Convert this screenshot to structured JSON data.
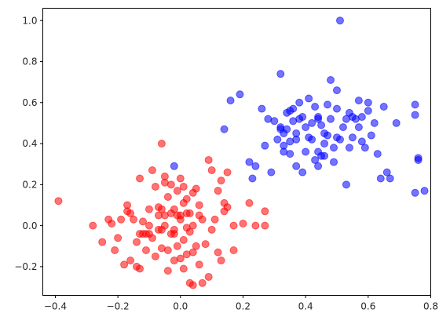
{
  "chart_data": {
    "type": "scatter",
    "title": "",
    "xlabel": "",
    "ylabel": "",
    "xlim": [
      -0.44,
      0.8
    ],
    "ylim": [
      -0.34,
      1.06
    ],
    "grid": false,
    "x_ticks": [
      -0.4,
      -0.2,
      0.0,
      0.2,
      0.4,
      0.6,
      0.8
    ],
    "x_tick_labels": [
      "−0.4",
      "−0.2",
      "0.0",
      "0.2",
      "0.4",
      "0.6",
      "0.8"
    ],
    "y_ticks": [
      -0.2,
      0.0,
      0.2,
      0.4,
      0.6,
      0.8,
      1.0
    ],
    "y_tick_labels": [
      "−0.2",
      "0.0",
      "0.2",
      "0.4",
      "0.6",
      "0.8",
      "1.0"
    ],
    "series": [
      {
        "color": "#ff0000",
        "alpha": 0.55,
        "points": [
          [
            -0.39,
            0.12
          ],
          [
            -0.28,
            0.0
          ],
          [
            -0.25,
            -0.08
          ],
          [
            -0.23,
            0.03
          ],
          [
            -0.22,
            0.01
          ],
          [
            -0.21,
            -0.12
          ],
          [
            -0.2,
            -0.06
          ],
          [
            -0.19,
            0.03
          ],
          [
            -0.18,
            -0.19
          ],
          [
            -0.17,
            0.07
          ],
          [
            -0.17,
            0.1
          ],
          [
            -0.16,
            -0.17
          ],
          [
            -0.16,
            0.06
          ],
          [
            -0.15,
            0.03
          ],
          [
            -0.14,
            -0.08
          ],
          [
            -0.14,
            -0.2
          ],
          [
            -0.13,
            -0.04
          ],
          [
            -0.13,
            -0.21
          ],
          [
            -0.13,
            0.23
          ],
          [
            -0.12,
            -0.04
          ],
          [
            -0.12,
            0.02
          ],
          [
            -0.11,
            -0.04
          ],
          [
            -0.11,
            -0.12
          ],
          [
            -0.1,
            0.0
          ],
          [
            -0.1,
            0.08
          ],
          [
            -0.1,
            -0.04
          ],
          [
            -0.09,
            0.27
          ],
          [
            -0.09,
            -0.06
          ],
          [
            -0.08,
            -0.15
          ],
          [
            -0.08,
            0.19
          ],
          [
            -0.07,
            0.05
          ],
          [
            -0.07,
            -0.02
          ],
          [
            -0.07,
            0.09
          ],
          [
            -0.06,
            0.08
          ],
          [
            -0.06,
            -0.11
          ],
          [
            -0.05,
            0.05
          ],
          [
            -0.05,
            0.24
          ],
          [
            -0.05,
            0.0
          ],
          [
            -0.04,
            -0.12
          ],
          [
            -0.04,
            0.14
          ],
          [
            -0.04,
            -0.22
          ],
          [
            -0.03,
            0.06
          ],
          [
            -0.03,
            -0.04
          ],
          [
            -0.03,
            0.2
          ],
          [
            -0.02,
            -0.17
          ],
          [
            -0.02,
            0.08
          ],
          [
            -0.02,
            -0.02
          ],
          [
            -0.01,
            0.05
          ],
          [
            -0.01,
            0.17
          ],
          [
            -0.01,
            -0.1
          ],
          [
            0.0,
            0.03
          ],
          [
            0.0,
            -0.16
          ],
          [
            0.0,
            0.23
          ],
          [
            0.0,
            0.05
          ],
          [
            0.01,
            -0.07
          ],
          [
            0.01,
            0.11
          ],
          [
            0.01,
            -0.21
          ],
          [
            0.01,
            0.19
          ],
          [
            0.02,
            -0.01
          ],
          [
            0.02,
            0.13
          ],
          [
            0.02,
            -0.14
          ],
          [
            0.02,
            0.06
          ],
          [
            0.03,
            -0.28
          ],
          [
            0.03,
            0.06
          ],
          [
            0.03,
            -0.03
          ],
          [
            0.04,
            0.16
          ],
          [
            0.04,
            -0.29
          ],
          [
            0.04,
            -0.13
          ],
          [
            0.04,
            0.0
          ],
          [
            0.05,
            0.18
          ],
          [
            0.05,
            -0.1
          ],
          [
            0.06,
            -0.19
          ],
          [
            0.06,
            0.05
          ],
          [
            0.06,
            0.1
          ],
          [
            0.07,
            -0.28
          ],
          [
            0.07,
            0.03
          ],
          [
            0.08,
            -0.09
          ],
          [
            0.09,
            -0.25
          ],
          [
            0.1,
            0.27
          ],
          [
            0.1,
            -0.02
          ],
          [
            0.11,
            0.03
          ],
          [
            0.12,
            -0.13
          ],
          [
            0.12,
            0.17
          ],
          [
            0.13,
            -0.17
          ],
          [
            0.14,
            0.07
          ],
          [
            -0.06,
            0.4
          ],
          [
            -0.05,
            0.21
          ],
          [
            -0.06,
            -0.02
          ],
          [
            0.09,
            0.32
          ],
          [
            -0.02,
            -0.04
          ],
          [
            0.15,
            0.26
          ],
          [
            0.17,
            -0.12
          ],
          [
            0.17,
            0.0
          ],
          [
            0.2,
            0.01
          ],
          [
            0.22,
            0.11
          ],
          [
            0.14,
            0.11
          ],
          [
            0.13,
            0.22
          ],
          [
            0.15,
            0.09
          ],
          [
            0.24,
            0.0
          ],
          [
            0.27,
            0.07
          ],
          [
            0.27,
            0.0
          ]
        ]
      },
      {
        "color": "#0000ff",
        "alpha": 0.55,
        "points": [
          [
            -0.02,
            0.29
          ],
          [
            0.14,
            0.47
          ],
          [
            0.16,
            0.61
          ],
          [
            0.19,
            0.64
          ],
          [
            0.22,
            0.31
          ],
          [
            0.23,
            0.23
          ],
          [
            0.24,
            0.29
          ],
          [
            0.26,
            0.57
          ],
          [
            0.27,
            0.39
          ],
          [
            0.28,
            0.52
          ],
          [
            0.29,
            0.26
          ],
          [
            0.3,
            0.51
          ],
          [
            0.31,
            0.42
          ],
          [
            0.32,
            0.74
          ],
          [
            0.32,
            0.48
          ],
          [
            0.33,
            0.36
          ],
          [
            0.33,
            0.45
          ],
          [
            0.34,
            0.47
          ],
          [
            0.34,
            0.55
          ],
          [
            0.35,
            0.41
          ],
          [
            0.35,
            0.35
          ],
          [
            0.36,
            0.51
          ],
          [
            0.36,
            0.57
          ],
          [
            0.37,
            0.42
          ],
          [
            0.37,
            0.45
          ],
          [
            0.38,
            0.52
          ],
          [
            0.38,
            0.6
          ],
          [
            0.39,
            0.26
          ],
          [
            0.39,
            0.53
          ],
          [
            0.4,
            0.36
          ],
          [
            0.4,
            0.48
          ],
          [
            0.41,
            0.62
          ],
          [
            0.41,
            0.43
          ],
          [
            0.42,
            0.5
          ],
          [
            0.42,
            0.42
          ],
          [
            0.43,
            0.58
          ],
          [
            0.43,
            0.32
          ],
          [
            0.44,
            0.52
          ],
          [
            0.44,
            0.36
          ],
          [
            0.44,
            0.29
          ],
          [
            0.45,
            0.34
          ],
          [
            0.45,
            0.49
          ],
          [
            0.46,
            0.45
          ],
          [
            0.46,
            0.34
          ],
          [
            0.47,
            0.44
          ],
          [
            0.47,
            0.59
          ],
          [
            0.48,
            0.71
          ],
          [
            0.48,
            0.52
          ],
          [
            0.49,
            0.38
          ],
          [
            0.49,
            0.31
          ],
          [
            0.5,
            0.57
          ],
          [
            0.5,
            0.66
          ],
          [
            0.51,
            1.0
          ],
          [
            0.51,
            0.42
          ],
          [
            0.52,
            0.48
          ],
          [
            0.53,
            0.52
          ],
          [
            0.53,
            0.2
          ],
          [
            0.54,
            0.38
          ],
          [
            0.54,
            0.55
          ],
          [
            0.55,
            0.53
          ],
          [
            0.56,
            0.52
          ],
          [
            0.57,
            0.48
          ],
          [
            0.57,
            0.61
          ],
          [
            0.58,
            0.41
          ],
          [
            0.58,
            0.53
          ],
          [
            0.59,
            0.38
          ],
          [
            0.6,
            0.6
          ],
          [
            0.6,
            0.56
          ],
          [
            0.61,
            0.44
          ],
          [
            0.62,
            0.5
          ],
          [
            0.63,
            0.35
          ],
          [
            0.64,
            0.23
          ],
          [
            0.65,
            0.58
          ],
          [
            0.66,
            0.26
          ],
          [
            0.67,
            0.23
          ],
          [
            0.69,
            0.5
          ],
          [
            0.75,
            0.59
          ],
          [
            0.75,
            0.54
          ],
          [
            0.76,
            0.33
          ],
          [
            0.76,
            0.32
          ],
          [
            0.75,
            0.16
          ],
          [
            0.78,
            0.17
          ],
          [
            0.32,
            0.47
          ],
          [
            0.35,
            0.56
          ],
          [
            0.44,
            0.53
          ],
          [
            0.46,
            0.4
          ],
          [
            0.5,
            0.43
          ],
          [
            0.55,
            0.43
          ],
          [
            0.37,
            0.29
          ],
          [
            0.33,
            0.39
          ]
        ]
      }
    ]
  }
}
